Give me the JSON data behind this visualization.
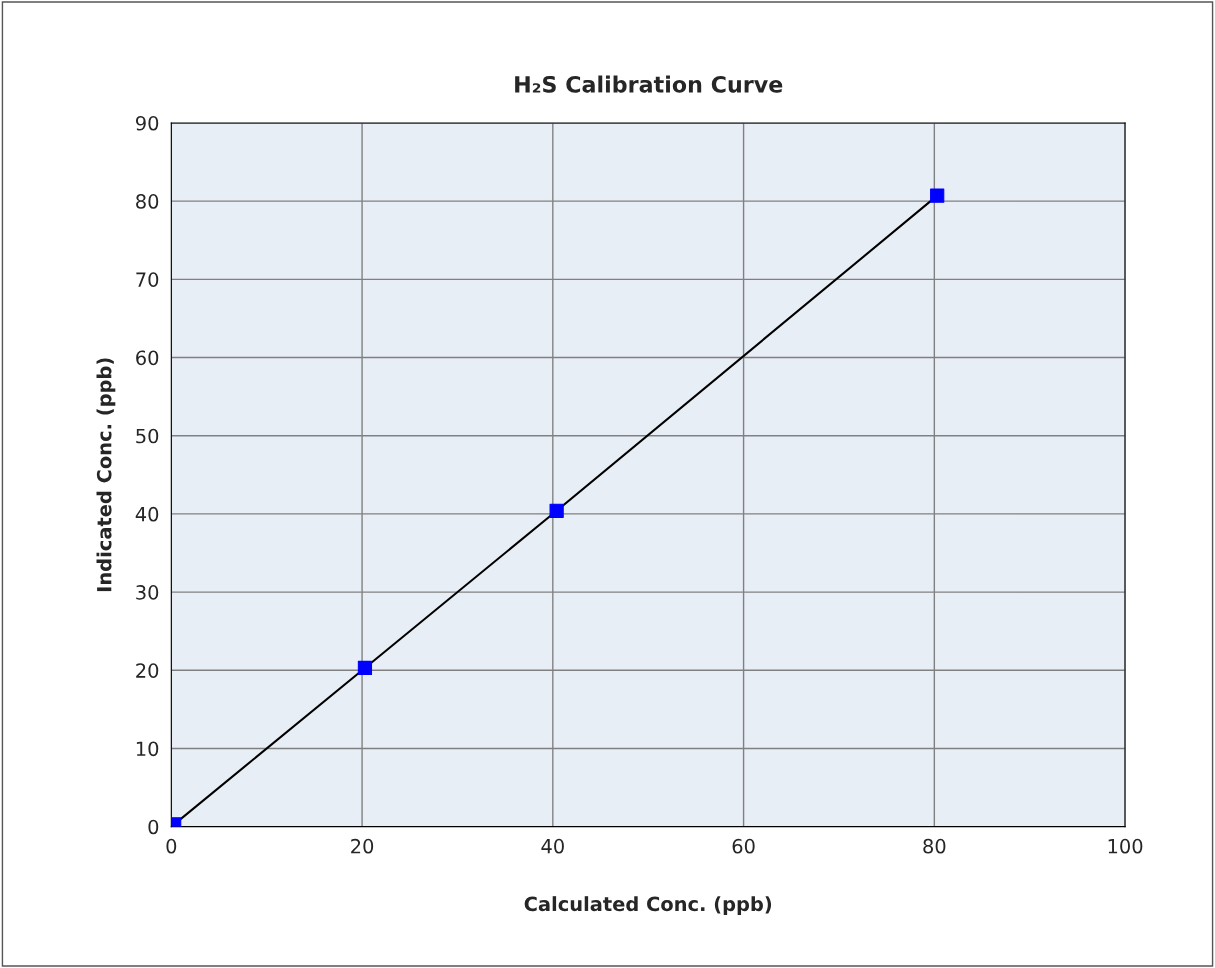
{
  "chart_data": {
    "type": "line",
    "title": "H₂S Calibration Curve",
    "xlabel": "Calculated Conc. (ppb)",
    "ylabel": "Indicated Conc. (ppb)",
    "x": [
      0.3,
      20.3,
      40.4,
      80.3
    ],
    "series": [
      {
        "color": "#0000ff",
        "values": [
          0.3,
          20.3,
          40.4,
          80.7
        ]
      }
    ],
    "xlim": [
      0,
      100
    ],
    "xticks": [
      0,
      20,
      40,
      60,
      80,
      100
    ],
    "ylim": [
      0,
      90
    ],
    "yticks": [
      0,
      10,
      20,
      30,
      40,
      50,
      60,
      70,
      80,
      90
    ],
    "grid": true,
    "marker": "square",
    "line_style": "solid"
  }
}
